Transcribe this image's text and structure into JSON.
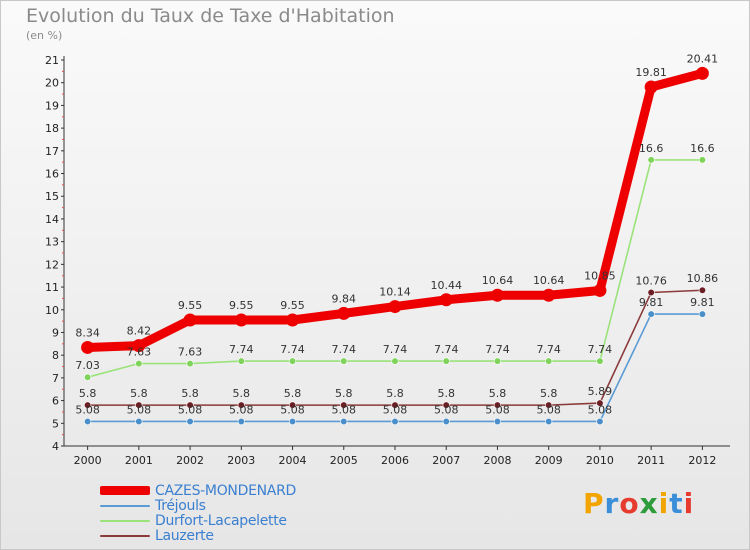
{
  "chart_data": {
    "type": "line",
    "title": "Evolution du Taux de Taxe d'Habitation",
    "ylabel": "(en %)",
    "xlabel": "",
    "x": [
      "2000",
      "2001",
      "2002",
      "2003",
      "2004",
      "2005",
      "2006",
      "2007",
      "2008",
      "2009",
      "2010",
      "2011",
      "2012"
    ],
    "ylim": [
      4,
      21
    ],
    "yticks": [
      "4",
      "5",
      "6",
      "7",
      "8",
      "9",
      "10",
      "11",
      "12",
      "13",
      "14",
      "15",
      "16",
      "17",
      "18",
      "19",
      "20",
      "21"
    ],
    "grid": false,
    "series": [
      {
        "name": "CAZES-MONDENARD",
        "color": "#ee0000",
        "thick": true,
        "values": [
          8.34,
          8.42,
          9.55,
          9.55,
          9.55,
          9.84,
          10.14,
          10.44,
          10.64,
          10.64,
          10.85,
          19.81,
          20.41
        ],
        "labels": [
          "8.34",
          "8.42",
          "9.55",
          "9.55",
          "9.55",
          "9.84",
          "10.14",
          "10.44",
          "10.64",
          "10.64",
          "10.85",
          "19.81",
          "20.41"
        ]
      },
      {
        "name": "Tréjouls",
        "color": "#5a9bd5",
        "marker": "#4a8fc9",
        "values": [
          5.08,
          5.08,
          5.08,
          5.08,
          5.08,
          5.08,
          5.08,
          5.08,
          5.08,
          5.08,
          5.08,
          9.81,
          9.81
        ],
        "labels": [
          "5.08",
          "5.08",
          "5.08",
          "5.08",
          "5.08",
          "5.08",
          "5.08",
          "5.08",
          "5.08",
          "5.08",
          "5.08",
          "9.81",
          "9.81"
        ]
      },
      {
        "name": "Durfort-Lacapelette",
        "color": "#9ae37a",
        "marker": "#7fd35a",
        "values": [
          7.03,
          7.63,
          7.63,
          7.74,
          7.74,
          7.74,
          7.74,
          7.74,
          7.74,
          7.74,
          7.74,
          16.6,
          16.6
        ],
        "labels": [
          "7.03",
          "7.63",
          "7.63",
          "7.74",
          "7.74",
          "7.74",
          "7.74",
          "7.74",
          "7.74",
          "7.74",
          "7.74",
          "16.6",
          "16.6"
        ]
      },
      {
        "name": "Lauzerte",
        "color": "#8a3a3a",
        "marker": "#6b1f25",
        "values": [
          5.8,
          5.8,
          5.8,
          5.8,
          5.8,
          5.8,
          5.8,
          5.8,
          5.8,
          5.8,
          5.89,
          10.76,
          10.86
        ],
        "labels": [
          "5.8",
          "5.8",
          "5.8",
          "5.8",
          "5.8",
          "5.8",
          "5.8",
          "5.8",
          "5.8",
          "5.8",
          "5.89",
          "10.76",
          "10.86"
        ]
      }
    ]
  },
  "legend_items": [
    {
      "label": "CAZES-MONDENARD",
      "color": "#ee0000"
    },
    {
      "label": "Tréjouls",
      "color": "#5a9bd5"
    },
    {
      "label": "Durfort-Lacapelette",
      "color": "#9ae37a"
    },
    {
      "label": "Lauzerte",
      "color": "#8a3a3a"
    }
  ],
  "logo": {
    "letters": [
      "P",
      "r",
      "o",
      "x",
      "i",
      "t",
      "i"
    ],
    "colors": [
      "#f2a500",
      "#3a8fd8",
      "#e63b2e",
      "#2e9c3a",
      "#f2a500",
      "#3a8fd8",
      "#e63b2e"
    ]
  }
}
